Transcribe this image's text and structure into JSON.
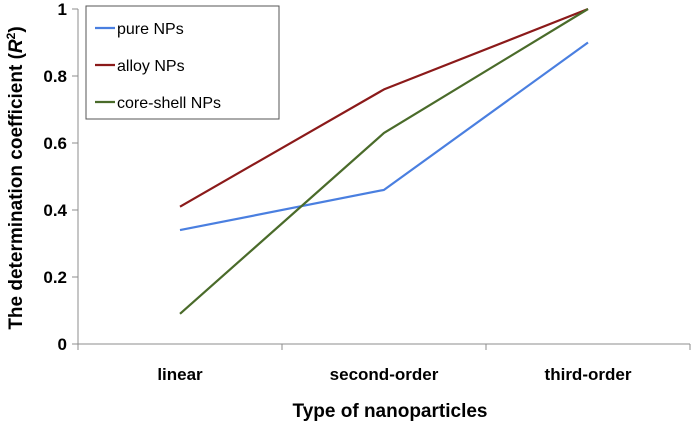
{
  "chart_data": {
    "type": "line",
    "categories": [
      "linear",
      "second-order",
      "third-order"
    ],
    "series": [
      {
        "name": "pure NPs",
        "color": "#4a7fe0",
        "values": [
          0.34,
          0.46,
          0.9
        ]
      },
      {
        "name": "alloy NPs",
        "color": "#8b1a1a",
        "values": [
          0.41,
          0.76,
          1.0
        ]
      },
      {
        "name": "core-shell NPs",
        "color": "#4a6b2a",
        "values": [
          0.09,
          0.63,
          1.0
        ]
      }
    ],
    "xlabel": "Type of nanoparticles",
    "ylabel_main": "The determination coefficient (",
    "ylabel_symbol": "R",
    "ylabel_sup": "2",
    "ylabel_close": ")",
    "ylim": [
      0,
      1
    ],
    "yticks": [
      0,
      0.2,
      0.4,
      0.6,
      0.8,
      1
    ],
    "ytick_labels": [
      "0",
      "0.2",
      "0.4",
      "0.6",
      "0.8",
      "1"
    ],
    "grid": false,
    "legend_position": "top-left"
  }
}
